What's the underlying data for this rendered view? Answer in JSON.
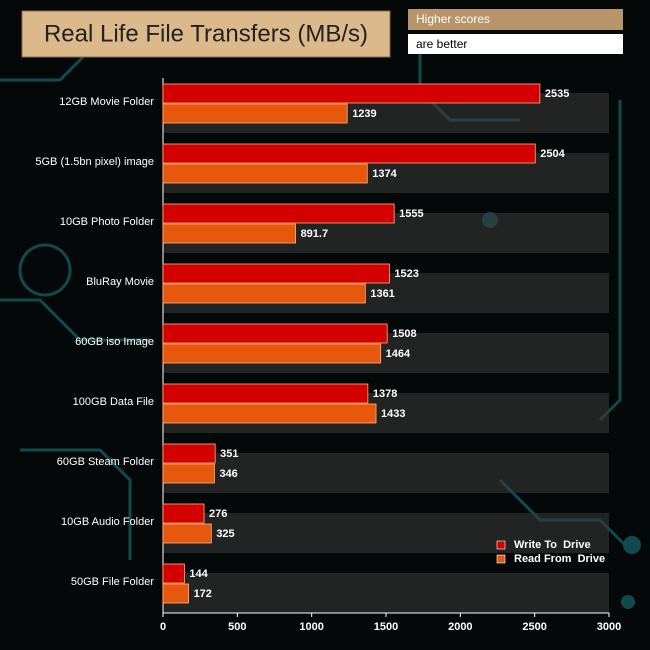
{
  "chart_data": {
    "type": "hbar",
    "title": "Real Life File Transfers (MB/s)",
    "note_line1": "Higher scores",
    "note_line2": "are better",
    "categories": [
      "12GB Movie Folder",
      "5GB (1.5bn pixel) image",
      "10GB Photo Folder",
      "BluRay Movie",
      "60GB iso Image",
      "100GB Data File",
      "60GB Steam Folder",
      "10GB Audio Folder",
      "50GB File Folder"
    ],
    "series": [
      {
        "name": "Write To  Drive",
        "color": "#d40000",
        "values": [
          2535,
          2504,
          1555,
          1523,
          1508,
          1378,
          351,
          276,
          144
        ]
      },
      {
        "name": "Read From  Drive",
        "color": "#e8580c",
        "values": [
          1239,
          1374,
          891.7,
          1361,
          1464,
          1433,
          346,
          325,
          172
        ]
      }
    ],
    "xlim": [
      0,
      3000
    ],
    "xticks": [
      0,
      500,
      1000,
      1500,
      2000,
      2500,
      3000
    ],
    "legend": "lower-right"
  }
}
